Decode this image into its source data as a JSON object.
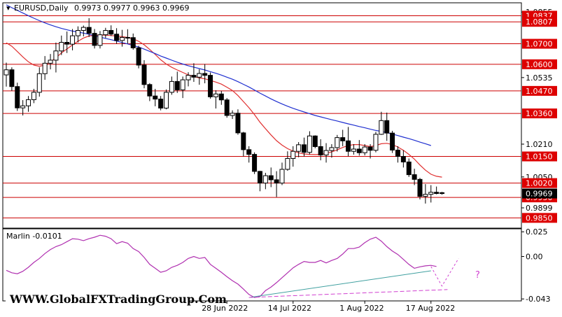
{
  "header": {
    "symbol_label": "EURUSD,Daily",
    "ohlc_label": "0.9973 0.9977 0.9963 0.9969"
  },
  "indicator": {
    "label": "Marlin -0.0101",
    "axis_ticks": [
      "0.025",
      "0.00",
      "-0.043"
    ],
    "annotation": "?"
  },
  "watermark": "WWW.GlobalFXTradingGroup.Com",
  "colors": {
    "background": "#ffffff",
    "candle": "#000000",
    "ma_short": "#e03030",
    "ma_long": "#2030d0",
    "level_line": "#cc0000",
    "level_tag": "#dd0000",
    "current_price_tag": "#000000",
    "oscillator": "#b030b0",
    "trend_line": "#40a0a0",
    "forecast": "#d040d0"
  },
  "chart_data": [
    {
      "type": "candlestick",
      "title": "EURUSD,Daily",
      "ohlc_last": {
        "open": 0.9973,
        "high": 0.9977,
        "low": 0.9963,
        "close": 0.9969
      },
      "ylim": [
        0.98,
        1.09
      ],
      "x_tick_labels": [
        "28 Jun 2022",
        "14 Jul 2022",
        "1 Aug 2022",
        "17 Aug 2022"
      ],
      "y_tick_labels": [
        "1.0855",
        "1.0535",
        "1.0210",
        "1.0050",
        "0.9899"
      ],
      "levels": [
        {
          "value": 1.0837,
          "label": "1.0837"
        },
        {
          "value": 1.0807,
          "label": "1.0807"
        },
        {
          "value": 1.07,
          "label": "1.0700"
        },
        {
          "value": 1.06,
          "label": "1.0600"
        },
        {
          "value": 1.047,
          "label": "1.0470"
        },
        {
          "value": 1.036,
          "label": "1.0360"
        },
        {
          "value": 1.015,
          "label": "1.0150"
        },
        {
          "value": 1.002,
          "label": "1.0020"
        },
        {
          "value": 0.995,
          "label": "0.9950"
        },
        {
          "value": 0.985,
          "label": "0.9850"
        }
      ],
      "current_price": {
        "value": 0.9969,
        "label": "0.9969"
      },
      "candles": [
        [
          1.0548,
          1.0608,
          1.0491,
          1.0573
        ],
        [
          1.0573,
          1.0585,
          1.047,
          1.0491
        ],
        [
          1.0491,
          1.051,
          1.0372,
          1.0387
        ],
        [
          1.0387,
          1.0425,
          1.035,
          1.0397
        ],
        [
          1.0397,
          1.0445,
          1.0368,
          1.0427
        ],
        [
          1.0427,
          1.048,
          1.041,
          1.0463
        ],
        [
          1.0463,
          1.0585,
          1.0442,
          1.0554
        ],
        [
          1.0554,
          1.064,
          1.0524,
          1.0605
        ],
        [
          1.0605,
          1.065,
          1.0575,
          1.062
        ],
        [
          1.062,
          1.0706,
          1.056,
          1.0665
        ],
        [
          1.0665,
          1.074,
          1.0645,
          1.0707
        ],
        [
          1.0707,
          1.076,
          1.0655,
          1.0698
        ],
        [
          1.0698,
          1.0772,
          1.0668,
          1.0739
        ],
        [
          1.0739,
          1.0785,
          1.0706,
          1.0765
        ],
        [
          1.0765,
          1.0789,
          1.0736,
          1.078
        ],
        [
          1.078,
          1.0825,
          1.0733,
          1.0751
        ],
        [
          1.0751,
          1.0772,
          1.0677,
          1.0692
        ],
        [
          1.0692,
          1.0762,
          1.0677,
          1.0744
        ],
        [
          1.0744,
          1.0778,
          1.0728,
          1.0765
        ],
        [
          1.0765,
          1.079,
          1.0738,
          1.0747
        ],
        [
          1.0747,
          1.0776,
          1.07,
          1.0716
        ],
        [
          1.0716,
          1.0768,
          1.0686,
          1.0731
        ],
        [
          1.0731,
          1.0771,
          1.0701,
          1.073
        ],
        [
          1.073,
          1.075,
          1.0671,
          1.068
        ],
        [
          1.068,
          1.069,
          1.058,
          1.0596
        ],
        [
          1.0596,
          1.062,
          1.0483,
          1.0501
        ],
        [
          1.0501,
          1.0508,
          1.042,
          1.0445
        ],
        [
          1.0445,
          1.048,
          1.0395,
          1.043
        ],
        [
          1.043,
          1.0445,
          1.0375,
          1.0386
        ],
        [
          1.0386,
          1.0477,
          1.038,
          1.0463
        ],
        [
          1.0463,
          1.054,
          1.0451,
          1.0516
        ],
        [
          1.0516,
          1.0564,
          1.046,
          1.0475
        ],
        [
          1.0475,
          1.054,
          1.0435,
          1.0524
        ],
        [
          1.0524,
          1.0561,
          1.0492,
          1.0546
        ],
        [
          1.0546,
          1.0605,
          1.0514,
          1.0537
        ],
        [
          1.0537,
          1.0576,
          1.05,
          1.0555
        ],
        [
          1.0555,
          1.0601,
          1.0507,
          1.0546
        ],
        [
          1.0546,
          1.056,
          1.0432,
          1.0441
        ],
        [
          1.0441,
          1.0473,
          1.0384,
          1.0455
        ],
        [
          1.0455,
          1.047,
          1.0402,
          1.0426
        ],
        [
          1.0426,
          1.0435,
          1.0339,
          1.035
        ],
        [
          1.035,
          1.0375,
          1.0333,
          1.0361
        ],
        [
          1.0361,
          1.038,
          1.0256,
          1.0265
        ],
        [
          1.0265,
          1.027,
          1.015,
          1.0183
        ],
        [
          1.0183,
          1.02,
          1.012,
          1.016
        ],
        [
          1.016,
          1.017,
          1.0064,
          1.0077
        ],
        [
          1.0077,
          1.008,
          0.998,
          1.002
        ],
        [
          1.002,
          1.007,
          0.999,
          1.0056
        ],
        [
          1.0056,
          1.0096,
          1.0,
          1.0036
        ],
        [
          1.0036,
          1.0078,
          0.9952,
          1.002
        ],
        [
          1.002,
          1.012,
          1.001,
          1.0087
        ],
        [
          1.0087,
          1.0175,
          1.008,
          1.014
        ],
        [
          1.014,
          1.02,
          1.01,
          1.0175
        ],
        [
          1.0175,
          1.022,
          1.0146,
          1.0207
        ],
        [
          1.0207,
          1.0242,
          1.015,
          1.017
        ],
        [
          1.017,
          1.0273,
          1.016,
          1.025
        ],
        [
          1.025,
          1.0253,
          1.019,
          1.0198
        ],
        [
          1.0198,
          1.0234,
          1.0131,
          1.0157
        ],
        [
          1.0157,
          1.0215,
          1.012,
          1.0179
        ],
        [
          1.0179,
          1.021,
          1.0144,
          1.0193
        ],
        [
          1.0193,
          1.0255,
          1.0174,
          1.0242
        ],
        [
          1.0242,
          1.028,
          1.02,
          1.0226
        ],
        [
          1.0226,
          1.0294,
          1.0151,
          1.0175
        ],
        [
          1.0175,
          1.021,
          1.0159,
          1.0186
        ],
        [
          1.0186,
          1.023,
          1.0154,
          1.0168
        ],
        [
          1.0168,
          1.021,
          1.0155,
          1.0196
        ],
        [
          1.0196,
          1.021,
          1.014,
          1.018
        ],
        [
          1.018,
          1.027,
          1.017,
          1.0258
        ],
        [
          1.0258,
          1.0368,
          1.0255,
          1.0325
        ],
        [
          1.0325,
          1.0364,
          1.0226,
          1.0264
        ],
        [
          1.0264,
          1.0275,
          1.0167,
          1.0181
        ],
        [
          1.0181,
          1.02,
          1.012,
          1.015
        ],
        [
          1.015,
          1.018,
          1.0096,
          1.0123
        ],
        [
          1.0123,
          1.014,
          1.005,
          1.0061
        ],
        [
          1.0061,
          1.009,
          1.001,
          1.0038
        ],
        [
          1.0038,
          1.0045,
          0.994,
          0.9955
        ],
        [
          0.9955,
          1.0015,
          0.992,
          0.9965
        ],
        [
          0.9965,
          1.001,
          0.9925,
          0.9975
        ],
        [
          0.9975,
          1.0003,
          0.9965,
          0.9969
        ],
        [
          0.9973,
          0.9977,
          0.9963,
          0.9969
        ]
      ],
      "ma_short": [
        1.0705,
        1.0688,
        1.0662,
        1.0636,
        1.0612,
        1.0596,
        1.059,
        1.0596,
        1.0612,
        1.0632,
        1.0655,
        1.0675,
        1.0694,
        1.0712,
        1.0728,
        1.0738,
        1.0741,
        1.0743,
        1.0742,
        1.074,
        1.0738,
        1.0735,
        1.0731,
        1.0724,
        1.0712,
        1.0695,
        1.0672,
        1.0648,
        1.0622,
        1.0601,
        1.0585,
        1.0572,
        1.056,
        1.0548,
        1.054,
        1.0533,
        1.0529,
        1.0521,
        1.0513,
        1.0503,
        1.0488,
        1.0472,
        1.0447,
        1.0418,
        1.0388,
        1.0354,
        1.0317,
        1.0285,
        1.0255,
        1.0227,
        1.0205,
        1.0188,
        1.0176,
        1.0168,
        1.0162,
        1.016,
        1.0159,
        1.016,
        1.0165,
        1.0172,
        1.0182,
        1.0194,
        1.0203,
        1.0208,
        1.0208,
        1.0203,
        1.0198,
        1.0203,
        1.0212,
        1.0214,
        1.0208,
        1.0196,
        1.018,
        1.016,
        1.0137,
        1.0108,
        1.0083,
        1.0063,
        1.0053,
        1.0049
      ],
      "ma_long": [
        1.089,
        1.0876,
        1.0863,
        1.085,
        1.0837,
        1.0825,
        1.0813,
        1.0802,
        1.0792,
        1.0783,
        1.0775,
        1.0768,
        1.0762,
        1.0757,
        1.0752,
        1.0746,
        1.0739,
        1.0733,
        1.0726,
        1.072,
        1.0713,
        1.0706,
        1.0699,
        1.0692,
        1.0684,
        1.0674,
        1.0663,
        1.0652,
        1.064,
        1.063,
        1.062,
        1.061,
        1.0601,
        1.0593,
        1.0586,
        1.0579,
        1.0572,
        1.0564,
        1.0556,
        1.0547,
        1.0537,
        1.0527,
        1.0515,
        1.0502,
        1.0489,
        1.0474,
        1.0459,
        1.0445,
        1.0431,
        1.0418,
        1.0406,
        1.0395,
        1.0385,
        1.0376,
        1.0367,
        1.0359,
        1.035,
        1.0343,
        1.0336,
        1.0329,
        1.0323,
        1.0316,
        1.0309,
        1.0303,
        1.0296,
        1.029,
        1.0283,
        1.0277,
        1.0272,
        1.0266,
        1.0259,
        1.0252,
        1.0244,
        1.0237,
        1.0229,
        1.022,
        1.0212,
        1.0203,
        null,
        null
      ]
    },
    {
      "type": "line",
      "title": "Marlin -0.0101",
      "ylim": [
        -0.045,
        0.028
      ],
      "series": [
        {
          "values": [
            -0.014,
            -0.0165,
            -0.0175,
            -0.015,
            -0.011,
            -0.006,
            -0.002,
            0.003,
            0.007,
            0.01,
            0.012,
            0.015,
            0.018,
            0.0175,
            0.016,
            0.018,
            0.0195,
            0.0215,
            0.0205,
            0.018,
            0.013,
            0.015,
            0.0135,
            0.008,
            0.005,
            -0.001,
            -0.008,
            -0.012,
            -0.016,
            -0.0145,
            -0.011,
            -0.009,
            -0.006,
            -0.002,
            0.0,
            -0.002,
            -0.001,
            -0.008,
            -0.012,
            -0.016,
            -0.0205,
            -0.0245,
            -0.028,
            -0.033,
            -0.0385,
            -0.0415,
            -0.0405,
            -0.0345,
            -0.031,
            -0.0265,
            -0.0215,
            -0.0165,
            -0.0115,
            -0.008,
            -0.005,
            -0.006,
            -0.006,
            -0.004,
            -0.0065,
            -0.004,
            -0.002,
            0.0025,
            0.008,
            0.008,
            0.0095,
            0.014,
            0.0175,
            0.0195,
            0.0155,
            0.01,
            0.0055,
            0.002,
            -0.003,
            -0.008,
            -0.012,
            -0.0105,
            -0.0095,
            -0.009,
            -0.0101
          ]
        }
      ],
      "trend_line": [
        [
          44,
          -0.0415
        ],
        [
          77,
          -0.0145
        ]
      ],
      "support_line": [
        [
          44,
          -0.0415
        ],
        [
          80,
          -0.0335
        ]
      ],
      "forecast": [
        [
          77,
          -0.0101
        ],
        [
          79,
          -0.03
        ],
        [
          82,
          -0.002
        ]
      ]
    }
  ]
}
